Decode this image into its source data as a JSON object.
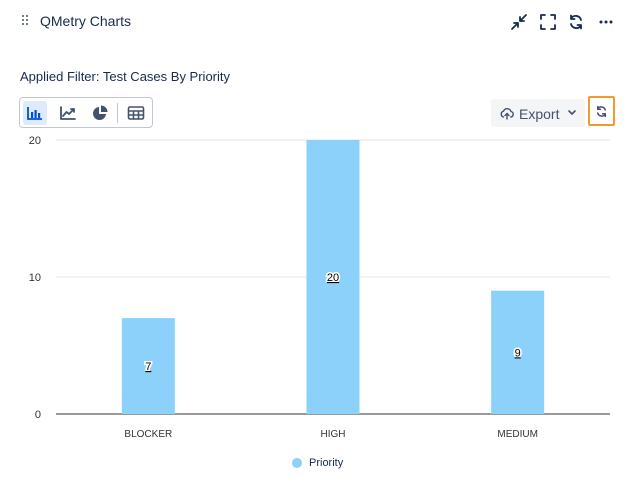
{
  "header": {
    "title": "QMetry Charts",
    "icons": [
      "drag-handle-icon",
      "collapse-icon",
      "fullscreen-icon",
      "refresh-icon",
      "more-icon"
    ]
  },
  "filter": {
    "text": "Applied Filter: Test Cases By Priority"
  },
  "toolbar": {
    "buttons": [
      "bar-chart-icon",
      "line-chart-icon",
      "pie-chart-icon",
      "table-icon"
    ],
    "active": "bar-chart-icon",
    "export_label": "Export",
    "accent_color": "#f29a2e"
  },
  "chart_data": {
    "type": "bar",
    "categories": [
      "BLOCKER",
      "HIGH",
      "MEDIUM"
    ],
    "series": [
      {
        "name": "Priority",
        "values": [
          7,
          20,
          9
        ],
        "color": "#8bd1f9"
      }
    ],
    "yticks": [
      0,
      10,
      20
    ],
    "ylim": [
      0,
      20
    ],
    "data_labels": true,
    "grid": true,
    "legend": "bottom-center"
  }
}
